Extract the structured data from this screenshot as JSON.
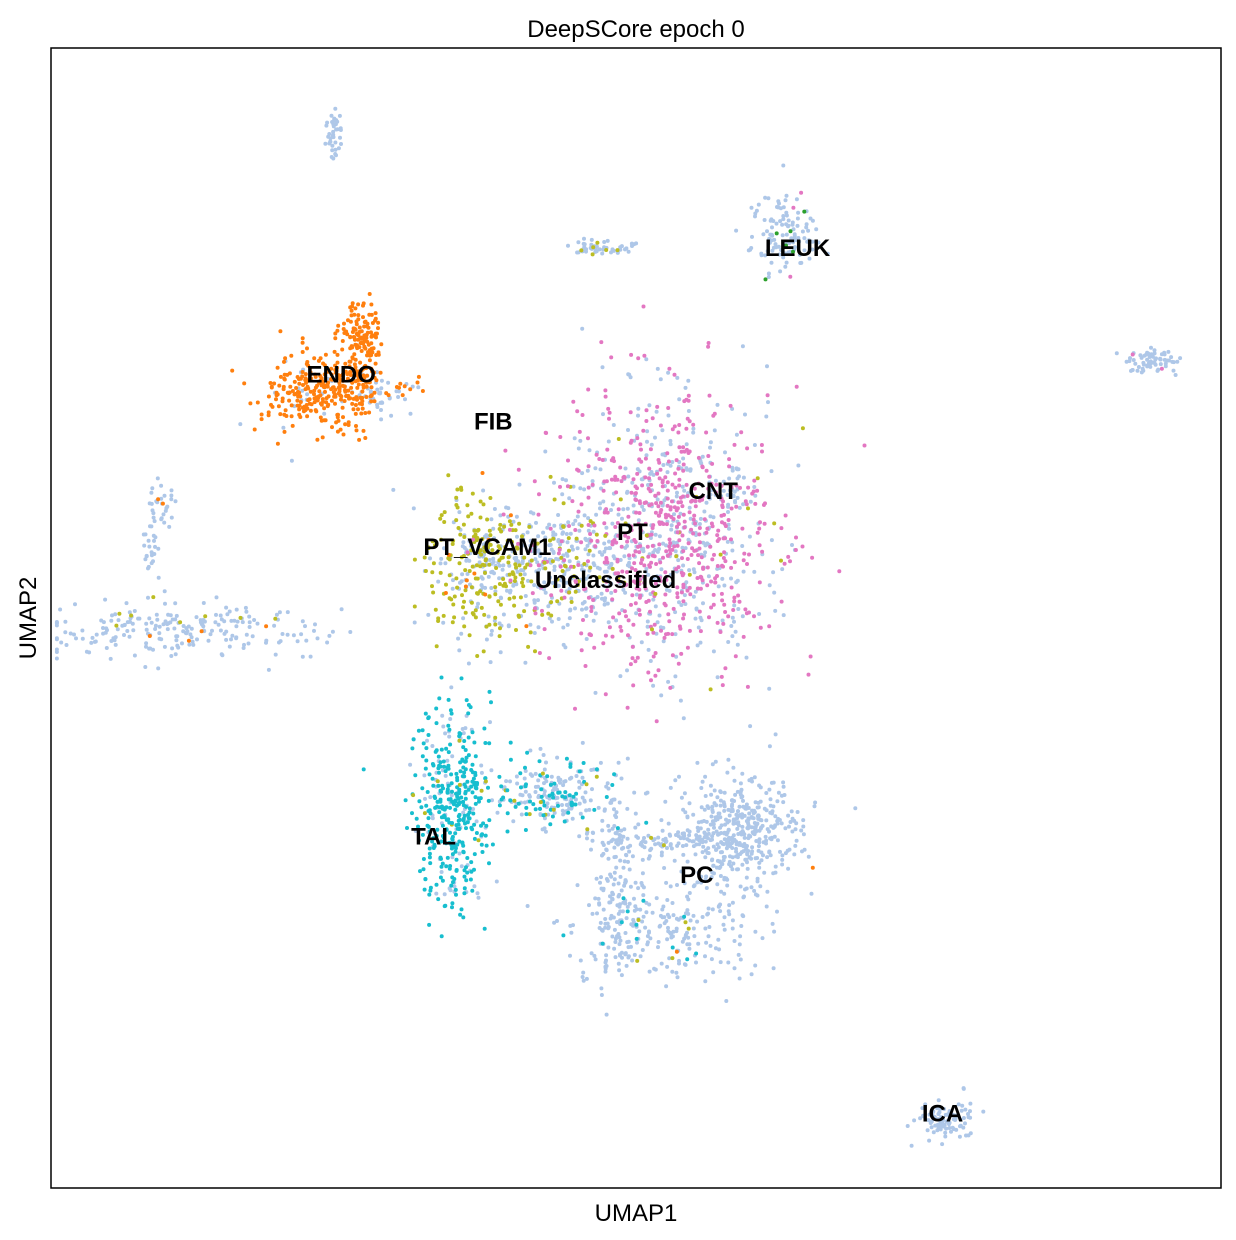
{
  "chart_data": {
    "type": "scatter",
    "title": "DeepSCore epoch 0",
    "xlabel": "UMAP1",
    "ylabel": "UMAP2",
    "xlim": [
      0,
      100
    ],
    "ylim": [
      0,
      100
    ],
    "grid": false,
    "legend": "none (labels on data)",
    "colors": {
      "Unclassified": "#aec7e8",
      "ENDO": "#ff7f0e",
      "PT": "#e377c2",
      "PT_VCAM1": "#bcbd22",
      "TAL": "#17becf",
      "misc": "#2ca02c"
    },
    "cluster_labels": [
      {
        "text": "LEUK",
        "x": 63.8,
        "y": 82.3
      },
      {
        "text": "ENDO",
        "x": 24.8,
        "y": 71.2
      },
      {
        "text": "FIB",
        "x": 37.8,
        "y": 67.1
      },
      {
        "text": "CNT",
        "x": 56.6,
        "y": 61.0
      },
      {
        "text": "PT",
        "x": 49.7,
        "y": 57.4
      },
      {
        "text": "PT_VCAM1",
        "x": 37.3,
        "y": 56.1
      },
      {
        "text": "Unclassified",
        "x": 47.4,
        "y": 53.2
      },
      {
        "text": "TAL",
        "x": 32.7,
        "y": 30.7
      },
      {
        "text": "PC",
        "x": 55.2,
        "y": 27.3
      },
      {
        "text": "ICA",
        "x": 76.2,
        "y": 6.4
      }
    ],
    "clusters": [
      {
        "type": "Unclassified",
        "cx": 24.2,
        "cy": 92.5,
        "sx": 0.4,
        "sy": 1.2,
        "n": 40,
        "mix": [
          [
            "ENDO",
            0.05
          ]
        ]
      },
      {
        "type": "Unclassified",
        "cx": 46.3,
        "cy": 82.5,
        "sx": 1.0,
        "sy": 0.4,
        "n": 40,
        "mix": [
          [
            "PT_VCAM1",
            0.15
          ]
        ]
      },
      {
        "type": "Unclassified",
        "cx": 49.0,
        "cy": 82.4,
        "sx": 0.6,
        "sy": 0.3,
        "n": 12,
        "mix": []
      },
      {
        "type": "Unclassified",
        "cx": 62.9,
        "cy": 83.6,
        "sx": 1.5,
        "sy": 1.6,
        "n": 120,
        "mix": [
          [
            "misc",
            0.03
          ],
          [
            "PT",
            0.03
          ]
        ]
      },
      {
        "type": "Unclassified",
        "cx": 94.1,
        "cy": 72.6,
        "sx": 0.9,
        "sy": 0.5,
        "n": 70,
        "mix": [
          [
            "PT",
            0.03
          ]
        ]
      },
      {
        "type": "Unclassified",
        "cx": 76.5,
        "cy": 6.0,
        "sx": 1.3,
        "sy": 0.9,
        "n": 90,
        "mix": []
      },
      {
        "type": "Unclassified",
        "cx": 9.5,
        "cy": 60.0,
        "sx": 0.6,
        "sy": 0.9,
        "n": 30,
        "mix": [
          [
            "ENDO",
            0.1
          ]
        ]
      },
      {
        "type": "Unclassified",
        "cx": 8.6,
        "cy": 54.8,
        "sx": 0.4,
        "sy": 2.2,
        "n": 25,
        "mix": []
      },
      {
        "type": "Unclassified",
        "cx": 10.3,
        "cy": 49.0,
        "sx": 6.0,
        "sy": 1.2,
        "n": 220,
        "mix": [
          [
            "ENDO",
            0.03
          ],
          [
            "PT_VCAM1",
            0.04
          ],
          [
            "misc",
            0.01
          ]
        ]
      },
      {
        "type": "ENDO",
        "cx": 26.5,
        "cy": 75.0,
        "sx": 0.9,
        "sy": 1.5,
        "n": 110,
        "mix": []
      },
      {
        "type": "ENDO",
        "cx": 26.2,
        "cy": 70.4,
        "sx": 0.9,
        "sy": 2.0,
        "n": 80,
        "mix": []
      },
      {
        "type": "ENDO",
        "cx": 22.4,
        "cy": 69.8,
        "sx": 2.2,
        "sy": 1.6,
        "n": 260,
        "mix": [
          [
            "Unclassified",
            0.06
          ]
        ]
      },
      {
        "type": "Unclassified",
        "cx": 28.5,
        "cy": 69.7,
        "sx": 1.6,
        "sy": 1.0,
        "n": 60,
        "mix": [
          [
            "ENDO",
            0.25
          ]
        ]
      },
      {
        "type": "PT_VCAM1",
        "cx": 36.7,
        "cy": 54.5,
        "sx": 2.2,
        "sy": 3.2,
        "n": 320,
        "mix": [
          [
            "Unclassified",
            0.35
          ],
          [
            "ENDO",
            0.02
          ]
        ]
      },
      {
        "type": "Unclassified",
        "cx": 43.5,
        "cy": 54.5,
        "sx": 2.8,
        "sy": 2.8,
        "n": 320,
        "mix": [
          [
            "PT_VCAM1",
            0.2
          ],
          [
            "PT",
            0.1
          ]
        ]
      },
      {
        "type": "PT",
        "cx": 52.5,
        "cy": 57.5,
        "sx": 4.5,
        "sy": 6.0,
        "n": 1000,
        "mix": [
          [
            "Unclassified",
            0.4
          ],
          [
            "PT_VCAM1",
            0.02
          ]
        ]
      },
      {
        "type": "Unclassified",
        "cx": 58.0,
        "cy": 61.3,
        "sx": 1.0,
        "sy": 1.0,
        "n": 30,
        "mix": [
          [
            "ENDO",
            0.05
          ]
        ]
      },
      {
        "type": "TAL",
        "cx": 34.4,
        "cy": 33.5,
        "sx": 1.6,
        "sy": 4.2,
        "n": 420,
        "mix": [
          [
            "Unclassified",
            0.2
          ],
          [
            "PT_VCAM1",
            0.03
          ]
        ]
      },
      {
        "type": "Unclassified",
        "cx": 43.0,
        "cy": 34.5,
        "sx": 2.5,
        "sy": 1.6,
        "n": 230,
        "mix": [
          [
            "TAL",
            0.25
          ],
          [
            "PT_VCAM1",
            0.05
          ]
        ]
      },
      {
        "type": "Unclassified",
        "cx": 48.5,
        "cy": 26.0,
        "sx": 1.0,
        "sy": 5.0,
        "n": 140,
        "mix": [
          [
            "TAL",
            0.05
          ]
        ]
      },
      {
        "type": "Unclassified",
        "cx": 52.5,
        "cy": 30.5,
        "sx": 3.5,
        "sy": 0.5,
        "n": 90,
        "mix": [
          [
            "PT_VCAM1",
            0.03
          ]
        ]
      },
      {
        "type": "Unclassified",
        "cx": 58.8,
        "cy": 31.2,
        "sx": 2.6,
        "sy": 2.6,
        "n": 430,
        "mix": [
          [
            "ENDO",
            0.01
          ]
        ]
      },
      {
        "type": "Unclassified",
        "cx": 52.5,
        "cy": 22.6,
        "sx": 4.0,
        "sy": 2.4,
        "n": 230,
        "mix": [
          [
            "TAL",
            0.03
          ],
          [
            "ENDO",
            0.01
          ],
          [
            "PT_VCAM1",
            0.03
          ]
        ]
      }
    ]
  }
}
